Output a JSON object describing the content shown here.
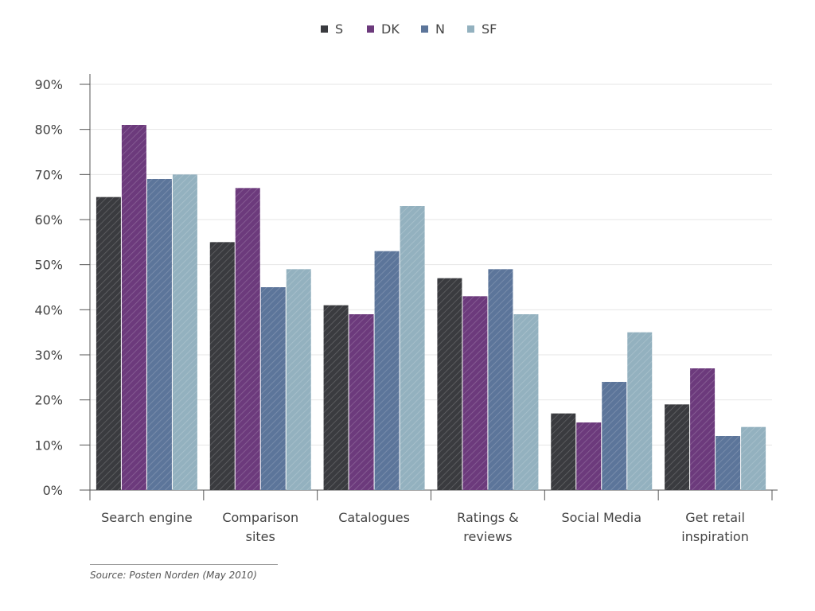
{
  "chart_data": {
    "type": "bar",
    "categories": [
      [
        "Search engine"
      ],
      [
        "Comparison",
        "sites"
      ],
      [
        "Catalogues"
      ],
      [
        "Ratings &",
        "reviews"
      ],
      [
        "Social Media"
      ],
      [
        "Get retail",
        "inspiration"
      ]
    ],
    "series": [
      {
        "name": "S",
        "color": "#3a3b3f",
        "values": [
          0.65,
          0.55,
          0.41,
          0.47,
          0.17,
          0.19
        ]
      },
      {
        "name": "DK",
        "color": "#6c3a7c",
        "values": [
          0.81,
          0.67,
          0.39,
          0.43,
          0.15,
          0.27
        ]
      },
      {
        "name": "N",
        "color": "#5c759a",
        "values": [
          0.69,
          0.45,
          0.53,
          0.49,
          0.24,
          0.12
        ]
      },
      {
        "name": "SF",
        "color": "#93b1bf",
        "values": [
          0.7,
          0.49,
          0.63,
          0.39,
          0.35,
          0.14
        ]
      }
    ],
    "y_ticks": [
      "0%",
      "10%",
      "20%",
      "30%",
      "40%",
      "50%",
      "60%",
      "70%",
      "80%",
      "90%"
    ],
    "ylim": [
      0,
      0.9
    ],
    "grid": true,
    "legend_position": "top-center",
    "title": "",
    "xlabel": "",
    "ylabel": ""
  },
  "source": "Source: Posten Norden (May 2010)"
}
